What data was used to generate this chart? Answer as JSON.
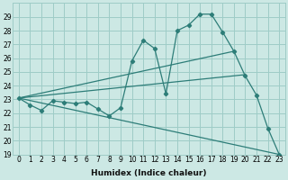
{
  "xlabel": "Humidex (Indice chaleur)",
  "background_color": "#cce8e4",
  "grid_color": "#9eccc7",
  "line_color": "#2d7d78",
  "xlim": [
    -0.5,
    23.5
  ],
  "ylim": [
    19,
    30
  ],
  "xticks": [
    0,
    1,
    2,
    3,
    4,
    5,
    6,
    7,
    8,
    9,
    10,
    11,
    12,
    13,
    14,
    15,
    16,
    17,
    18,
    19,
    20,
    21,
    22,
    23
  ],
  "yticks": [
    19,
    20,
    21,
    22,
    23,
    24,
    25,
    26,
    27,
    28,
    29
  ],
  "series_x": [
    0,
    1,
    2,
    3,
    4,
    5,
    6,
    7,
    8,
    9,
    10,
    11,
    12,
    13,
    14,
    15,
    16,
    17,
    18,
    19,
    20,
    21,
    22,
    23
  ],
  "series_y": [
    23.1,
    22.6,
    22.2,
    22.9,
    22.8,
    22.7,
    22.8,
    22.3,
    21.8,
    22.4,
    25.8,
    27.3,
    26.7,
    23.4,
    28.0,
    28.4,
    29.2,
    29.2,
    27.9,
    26.5,
    24.7,
    23.3,
    20.9,
    19.0
  ],
  "line1_x": [
    0,
    19
  ],
  "line1_y": [
    23.1,
    26.5
  ],
  "line2_x": [
    0,
    20
  ],
  "line2_y": [
    23.1,
    24.8
  ],
  "line3_x": [
    0,
    23
  ],
  "line3_y": [
    23.1,
    19.0
  ],
  "xlabel_fontsize": 6.5,
  "tick_fontsize": 5.5
}
